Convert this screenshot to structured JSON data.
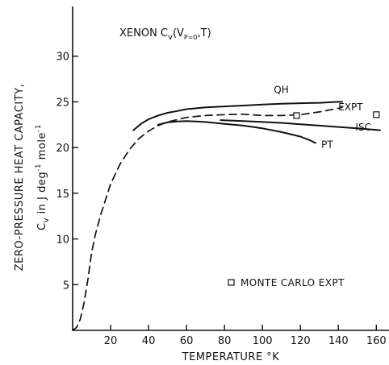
{
  "chart_data": {
    "type": "line",
    "title": "XENON  C",
    "title_sub": "v",
    "title_args": "(V",
    "title_args_sub": "P=0",
    "title_args_end": ",T)",
    "ylabel_line1": "ZERO-PRESSURE  HEAT CAPACITY,",
    "ylabel_line2_prefix": "C",
    "ylabel_line2_sub": "v",
    "ylabel_line2_mid": "  in  J  deg",
    "ylabel_line2_sup1": "-1",
    "ylabel_line2_mid2": "  mole",
    "ylabel_line2_sup2": "-1",
    "xlabel": "TEMPERATURE  °K",
    "xlim": [
      0,
      162
    ],
    "ylim": [
      0,
      35
    ],
    "x_ticks": [
      20,
      40,
      60,
      80,
      100,
      120,
      140,
      160
    ],
    "x_tick_labels": [
      "20",
      "40",
      "60",
      "80",
      "100",
      "120",
      "140",
      "160"
    ],
    "y_ticks": [
      5,
      10,
      15,
      20,
      25,
      30
    ],
    "y_tick_labels": [
      "5",
      "10",
      "15",
      "20",
      "25",
      "30"
    ],
    "grid": false,
    "series": [
      {
        "name": "QH",
        "style": "solid",
        "x": [
          32,
          36,
          40,
          45,
          50,
          55,
          60,
          70,
          80,
          90,
          100,
          110,
          120,
          130,
          140,
          142
        ],
        "y": [
          21.9,
          22.6,
          23.1,
          23.5,
          23.8,
          24.0,
          24.2,
          24.4,
          24.5,
          24.6,
          24.7,
          24.8,
          24.85,
          24.9,
          25.0,
          25.0
        ]
      },
      {
        "name": "EXPT",
        "style": "dashed",
        "x": [
          0,
          2,
          4,
          6,
          8,
          10,
          12,
          15,
          20,
          25,
          30,
          35,
          40,
          45,
          50,
          60,
          70,
          80,
          90,
          100,
          110,
          120,
          130,
          140,
          142
        ],
        "y": [
          0,
          0.3,
          1.2,
          3.0,
          5.5,
          8.5,
          10.5,
          12.8,
          16.0,
          18.2,
          19.8,
          21.0,
          21.8,
          22.4,
          22.8,
          23.3,
          23.5,
          23.6,
          23.65,
          23.5,
          23.5,
          23.6,
          23.9,
          24.3,
          24.4
        ]
      },
      {
        "name": "ISC",
        "style": "solid",
        "x": [
          78,
          90,
          100,
          110,
          120,
          130,
          140,
          150,
          162
        ],
        "y": [
          23.0,
          22.9,
          22.8,
          22.7,
          22.55,
          22.4,
          22.25,
          22.1,
          21.9
        ]
      },
      {
        "name": "PT",
        "style": "solid",
        "x": [
          45,
          50,
          55,
          60,
          65,
          70,
          80,
          90,
          100,
          110,
          120,
          125,
          128
        ],
        "y": [
          22.5,
          22.75,
          22.85,
          22.9,
          22.85,
          22.8,
          22.6,
          22.4,
          22.1,
          21.7,
          21.2,
          20.8,
          20.5
        ]
      }
    ],
    "monte_carlo": {
      "name": "MONTE CARLO EXPT",
      "x": [
        118,
        160
      ],
      "y": [
        23.5,
        23.6
      ]
    },
    "legend_position": "bottom-right"
  }
}
